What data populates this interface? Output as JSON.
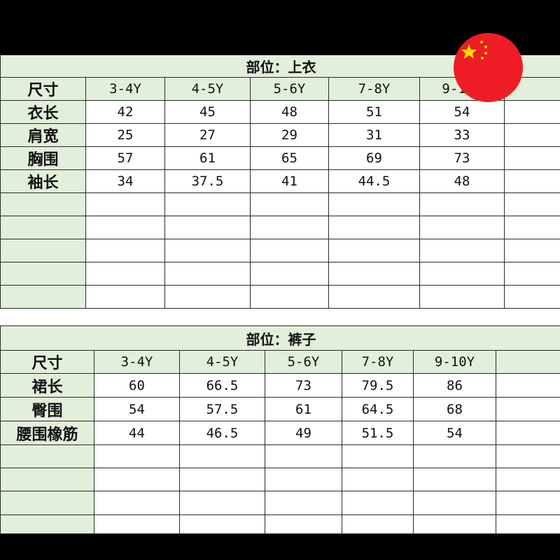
{
  "tables": [
    {
      "title": "部位：上衣",
      "header": [
        "尺寸",
        "3-4Y",
        "4-5Y",
        "5-6Y",
        "7-8Y",
        "9-10Y",
        ""
      ],
      "rows": [
        [
          "衣长",
          "42",
          "45",
          "48",
          "51",
          "54",
          ""
        ],
        [
          "肩宽",
          "25",
          "27",
          "29",
          "31",
          "33",
          ""
        ],
        [
          "胸围",
          "57",
          "61",
          "65",
          "69",
          "73",
          ""
        ],
        [
          "袖长",
          "34",
          "37.5",
          "41",
          "44.5",
          "48",
          ""
        ]
      ],
      "empty_rows": 5
    },
    {
      "title": "部位：裤子",
      "header": [
        "尺寸",
        "3-4Y",
        "4-5Y",
        "5-6Y",
        "7-8Y",
        "9-10Y",
        ""
      ],
      "rows": [
        [
          "裙长",
          "60",
          "66.5",
          "73",
          "79.5",
          "86",
          ""
        ],
        [
          "臀围",
          "54",
          "57.5",
          "61",
          "64.5",
          "68",
          ""
        ],
        [
          "腰围橡筋",
          "44",
          "46.5",
          "49",
          "51.5",
          "54",
          ""
        ]
      ],
      "empty_rows": 4
    }
  ],
  "colors": {
    "header_bg": "#e2efda",
    "flag_red": "#ee1c25",
    "flag_star": "#ffde00"
  },
  "icons": {
    "flag": "china-flag-icon"
  }
}
